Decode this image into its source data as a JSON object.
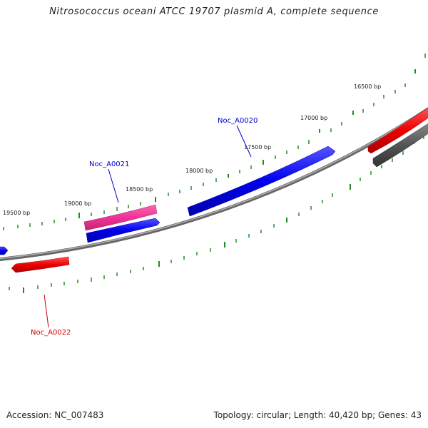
{
  "title": "Nitrosococcus oceani ATCC 19707 plasmid A, complete sequence",
  "footer": {
    "accession": "Accession: NC_007483",
    "topology": "Topology: circular; Length: 40,420 bp; Genes: 43"
  },
  "scale_labels": [
    "16500 bp",
    "17000 bp",
    "17500 bp",
    "18000 bp",
    "18500 bp",
    "19000 bp",
    "19500 bp"
  ],
  "gene_labels": [
    {
      "text": "Noc_A0020",
      "color": "#0000cc"
    },
    {
      "text": "Noc_A0021",
      "color": "#0000cc"
    },
    {
      "text": "Noc_A0022",
      "color": "#cc0000"
    }
  ],
  "colors": {
    "forward_gene": "#0000ee",
    "forward_gene_highlight": "#ee3399",
    "reverse_gene": "#ee0000",
    "other_feature": "#555555",
    "backbone": "#808080",
    "tick": "#228b22"
  }
}
